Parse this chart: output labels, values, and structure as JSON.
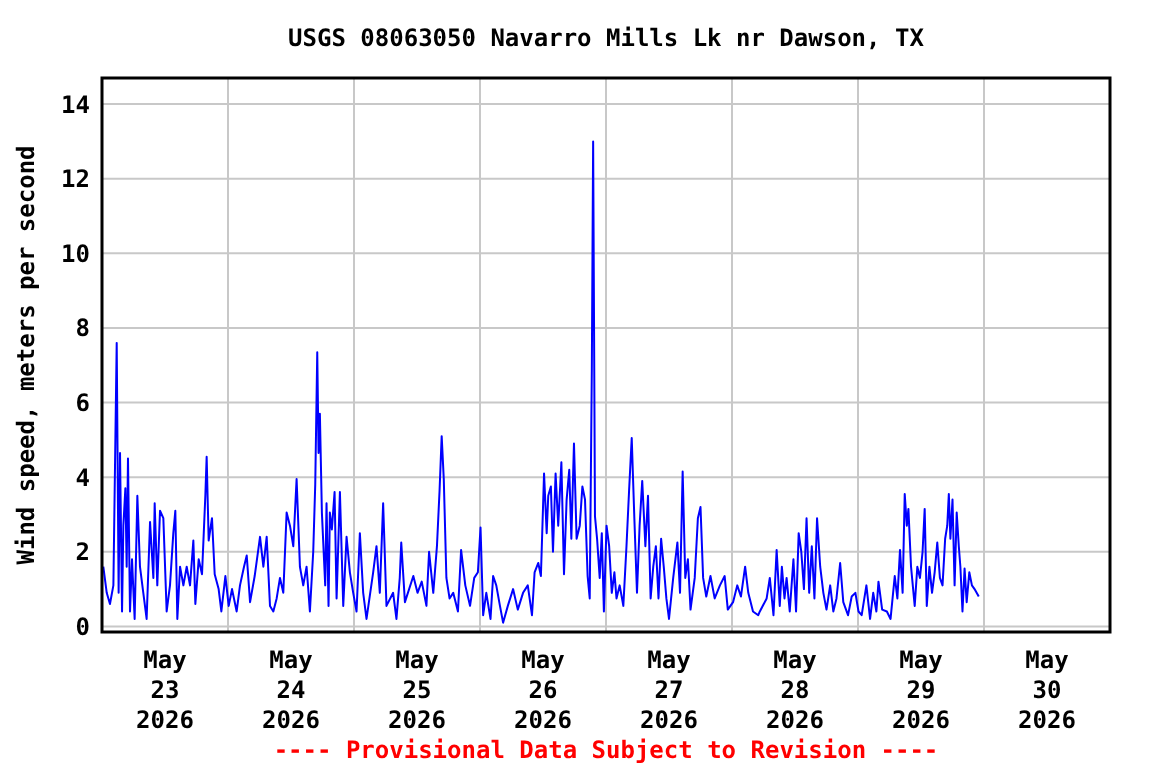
{
  "chart_data": {
    "type": "line",
    "title": "USGS 08063050 Navarro Mills Lk nr Dawson, TX",
    "ylabel": "Wind speed, meters per second",
    "annotations": [
      "---- Provisional Data Subject to Revision ----"
    ],
    "xlim": [
      "2026-05-23T00:00",
      "2026-05-31T00:00"
    ],
    "xticks": [
      {
        "value": "2026-05-23T12:00",
        "label": "May\n23\n2026"
      },
      {
        "value": "2026-05-24T12:00",
        "label": "May\n24\n2026"
      },
      {
        "value": "2026-05-25T12:00",
        "label": "May\n25\n2026"
      },
      {
        "value": "2026-05-26T12:00",
        "label": "May\n26\n2026"
      },
      {
        "value": "2026-05-27T12:00",
        "label": "May\n27\n2026"
      },
      {
        "value": "2026-05-28T12:00",
        "label": "May\n28\n2026"
      },
      {
        "value": "2026-05-29T12:00",
        "label": "May\n29\n2026"
      },
      {
        "value": "2026-05-30T12:00",
        "label": "May\n30\n2026"
      },
      {
        "value": "2026-05-24T00:00",
        "label": null
      },
      {
        "value": "2026-05-25T00:00",
        "label": null
      },
      {
        "value": "2026-05-26T00:00",
        "label": null
      },
      {
        "value": "2026-05-27T00:00",
        "label": null
      },
      {
        "value": "2026-05-28T00:00",
        "label": null
      },
      {
        "value": "2026-05-29T00:00",
        "label": null
      },
      {
        "value": "2026-05-30T00:00",
        "label": null
      }
    ],
    "ylim": [
      -0.15,
      14.7
    ],
    "yticks": [
      0,
      2,
      4,
      6,
      8,
      10,
      12,
      14
    ],
    "grid": true,
    "series": [
      {
        "color": "#0000ff",
        "x": [
          "2026-05-23T00:15",
          "2026-05-23T00:54",
          "2026-05-23T01:31",
          "2026-05-23T02:10",
          "2026-05-23T02:48",
          "2026-05-23T03:10",
          "2026-05-23T03:26",
          "2026-05-23T03:49",
          "2026-05-23T04:04",
          "2026-05-23T04:27",
          "2026-05-23T04:42",
          "2026-05-23T04:57",
          "2026-05-23T05:20",
          "2026-05-23T05:43",
          "2026-05-23T06:13",
          "2026-05-23T06:44",
          "2026-05-23T07:14",
          "2026-05-23T07:52",
          "2026-05-23T08:30",
          "2026-05-23T09:09",
          "2026-05-23T09:47",
          "2026-05-23T10:02",
          "2026-05-23T10:32",
          "2026-05-23T11:03",
          "2026-05-23T11:41",
          "2026-05-23T12:19",
          "2026-05-23T12:57",
          "2026-05-23T13:35",
          "2026-05-23T13:58",
          "2026-05-23T14:21",
          "2026-05-23T14:52",
          "2026-05-23T15:30",
          "2026-05-23T16:08",
          "2026-05-23T16:46",
          "2026-05-23T17:24",
          "2026-05-23T17:47",
          "2026-05-23T18:25",
          "2026-05-23T19:03",
          "2026-05-23T19:41",
          "2026-05-23T19:56",
          "2026-05-23T20:19",
          "2026-05-23T20:57",
          "2026-05-23T21:28",
          "2026-05-23T22:13",
          "2026-05-23T22:44",
          "2026-05-23T23:30",
          "2026-05-24T00:08",
          "2026-05-24T00:46",
          "2026-05-24T01:39",
          "2026-05-24T02:17",
          "2026-05-24T03:03",
          "2026-05-24T03:34",
          "2026-05-24T04:12",
          "2026-05-24T05:05",
          "2026-05-24T06:06",
          "2026-05-24T06:44",
          "2026-05-24T07:22",
          "2026-05-24T08:00",
          "2026-05-24T08:38",
          "2026-05-24T09:16",
          "2026-05-24T09:54",
          "2026-05-24T10:32",
          "2026-05-24T11:10",
          "2026-05-24T11:48",
          "2026-05-24T12:26",
          "2026-05-24T13:04",
          "2026-05-24T13:42",
          "2026-05-24T14:20",
          "2026-05-24T14:58",
          "2026-05-24T15:36",
          "2026-05-24T16:14",
          "2026-05-24T16:37",
          "2026-05-24T17:00",
          "2026-05-24T17:15",
          "2026-05-24T17:30",
          "2026-05-24T17:53",
          "2026-05-24T18:31",
          "2026-05-24T18:46",
          "2026-05-24T19:09",
          "2026-05-24T19:24",
          "2026-05-24T19:47",
          "2026-05-24T20:18",
          "2026-05-24T20:41",
          "2026-05-24T21:19",
          "2026-05-24T21:57",
          "2026-05-24T22:35",
          "2026-05-24T23:13",
          "2026-05-24T23:51",
          "2026-05-25T00:29",
          "2026-05-25T01:07",
          "2026-05-25T01:45",
          "2026-05-25T02:23",
          "2026-05-25T03:39",
          "2026-05-25T04:17",
          "2026-05-25T04:55",
          "2026-05-25T05:33",
          "2026-05-25T06:11",
          "2026-05-25T07:27",
          "2026-05-25T08:05",
          "2026-05-25T08:43",
          "2026-05-25T09:00",
          "2026-05-25T09:42",
          "2026-05-25T11:18",
          "2026-05-25T12:06",
          "2026-05-25T12:54",
          "2026-05-25T13:48",
          "2026-05-25T14:18",
          "2026-05-25T15:06",
          "2026-05-25T15:48",
          "2026-05-25T16:18",
          "2026-05-25T16:42",
          "2026-05-25T17:06",
          "2026-05-25T17:36",
          "2026-05-25T18:12",
          "2026-05-25T18:54",
          "2026-05-25T19:48",
          "2026-05-25T20:24",
          "2026-05-25T21:12",
          "2026-05-25T22:06",
          "2026-05-25T22:54",
          "2026-05-25T23:36",
          "2026-05-26T00:06",
          "2026-05-26T00:36",
          "2026-05-26T01:12",
          "2026-05-26T02:00",
          "2026-05-26T02:30",
          "2026-05-26T03:06",
          "2026-05-26T03:48",
          "2026-05-26T04:24",
          "2026-05-26T05:18",
          "2026-05-26T06:18",
          "2026-05-26T07:12",
          "2026-05-26T08:12",
          "2026-05-26T09:06",
          "2026-05-26T09:54",
          "2026-05-26T10:24",
          "2026-05-26T11:06",
          "2026-05-26T11:36",
          "2026-05-26T12:12",
          "2026-05-26T12:42",
          "2026-05-26T13:00",
          "2026-05-26T13:30",
          "2026-05-26T13:54",
          "2026-05-26T14:24",
          "2026-05-26T14:54",
          "2026-05-26T15:30",
          "2026-05-26T16:00",
          "2026-05-26T16:30",
          "2026-05-26T17:00",
          "2026-05-26T17:24",
          "2026-05-26T17:54",
          "2026-05-26T18:24",
          "2026-05-26T19:00",
          "2026-05-26T19:30",
          "2026-05-26T20:00",
          "2026-05-26T20:30",
          "2026-05-26T20:54",
          "2026-05-26T21:18",
          "2026-05-26T21:33",
          "2026-05-26T21:54",
          "2026-05-26T22:18",
          "2026-05-26T22:48",
          "2026-05-26T23:12",
          "2026-05-26T23:36",
          "2026-05-27T00:06",
          "2026-05-27T00:36",
          "2026-05-27T01:06",
          "2026-05-27T01:36",
          "2026-05-27T02:00",
          "2026-05-27T02:36",
          "2026-05-27T03:18",
          "2026-05-27T03:54",
          "2026-05-27T04:24",
          "2026-05-27T04:54",
          "2026-05-27T05:24",
          "2026-05-27T05:54",
          "2026-05-27T06:24",
          "2026-05-27T06:54",
          "2026-05-27T07:30",
          "2026-05-27T08:00",
          "2026-05-27T08:30",
          "2026-05-27T09:00",
          "2026-05-27T09:30",
          "2026-05-27T10:00",
          "2026-05-27T10:30",
          "2026-05-27T11:00",
          "2026-05-27T11:30",
          "2026-05-27T12:00",
          "2026-05-27T12:48",
          "2026-05-27T13:36",
          "2026-05-27T14:06",
          "2026-05-27T14:36",
          "2026-05-27T15:06",
          "2026-05-27T15:36",
          "2026-05-27T16:06",
          "2026-05-27T16:54",
          "2026-05-27T17:30",
          "2026-05-27T18:00",
          "2026-05-27T18:30",
          "2026-05-27T19:06",
          "2026-05-27T19:54",
          "2026-05-27T20:42",
          "2026-05-27T21:42",
          "2026-05-27T22:36",
          "2026-05-27T23:12",
          "2026-05-28T00:12",
          "2026-05-28T01:00",
          "2026-05-28T01:42",
          "2026-05-28T02:30",
          "2026-05-28T03:06",
          "2026-05-28T04:00",
          "2026-05-28T05:00",
          "2026-05-28T05:18",
          "2026-05-28T06:36",
          "2026-05-28T07:12",
          "2026-05-28T07:54",
          "2026-05-28T08:30",
          "2026-05-28T09:06",
          "2026-05-28T09:30",
          "2026-05-28T10:00",
          "2026-05-28T10:24",
          "2026-05-28T11:00",
          "2026-05-28T11:42",
          "2026-05-28T12:12",
          "2026-05-28T12:42",
          "2026-05-28T13:12",
          "2026-05-28T13:42",
          "2026-05-28T14:12",
          "2026-05-28T14:42",
          "2026-05-28T15:12",
          "2026-05-28T15:42",
          "2026-05-28T16:12",
          "2026-05-28T16:48",
          "2026-05-28T17:24",
          "2026-05-28T18:00",
          "2026-05-28T18:42",
          "2026-05-28T19:18",
          "2026-05-28T19:54",
          "2026-05-28T20:36",
          "2026-05-28T21:12",
          "2026-05-28T22:06",
          "2026-05-28T22:48",
          "2026-05-28T23:30",
          "2026-05-29T00:06",
          "2026-05-29T00:42",
          "2026-05-29T01:36",
          "2026-05-29T02:18",
          "2026-05-29T02:54",
          "2026-05-29T03:30",
          "2026-05-29T03:54",
          "2026-05-29T04:36",
          "2026-05-29T05:30",
          "2026-05-29T06:12",
          "2026-05-29T07:00",
          "2026-05-29T07:30",
          "2026-05-29T08:00",
          "2026-05-29T08:30",
          "2026-05-29T08:54",
          "2026-05-29T09:18",
          "2026-05-29T09:36",
          "2026-05-29T10:06",
          "2026-05-29T10:48",
          "2026-05-29T11:18",
          "2026-05-29T11:48",
          "2026-05-29T12:18",
          "2026-05-29T12:42",
          "2026-05-29T13:06",
          "2026-05-29T13:36",
          "2026-05-29T14:06",
          "2026-05-29T14:36",
          "2026-05-29T15:06",
          "2026-05-29T15:36",
          "2026-05-29T16:06",
          "2026-05-29T16:36",
          "2026-05-29T17:00",
          "2026-05-29T17:18",
          "2026-05-29T17:36",
          "2026-05-29T18:00",
          "2026-05-29T18:24",
          "2026-05-29T18:48",
          "2026-05-29T19:12",
          "2026-05-29T19:30",
          "2026-05-29T19:54",
          "2026-05-29T20:18",
          "2026-05-29T20:42",
          "2026-05-29T21:12",
          "2026-05-29T21:42",
          "2026-05-29T22:12",
          "2026-05-29T23:00"
        ],
        "values": [
          1.6,
          0.9,
          0.6,
          1.1,
          7.6,
          0.9,
          4.65,
          0.4,
          2.7,
          3.7,
          1.6,
          4.5,
          0.4,
          1.8,
          0.2,
          3.5,
          1.6,
          0.9,
          0.2,
          2.8,
          1.3,
          3.3,
          1.1,
          3.1,
          2.9,
          0.4,
          1.1,
          2.5,
          3.1,
          0.2,
          1.6,
          1.1,
          1.6,
          1.1,
          2.3,
          0.6,
          1.8,
          1.4,
          3.5,
          4.55,
          2.3,
          2.9,
          1.4,
          1.0,
          0.4,
          1.35,
          0.55,
          1.0,
          0.4,
          1.1,
          1.6,
          1.9,
          0.65,
          1.35,
          2.4,
          1.6,
          2.4,
          0.55,
          0.4,
          0.75,
          1.3,
          0.9,
          3.05,
          2.7,
          2.15,
          3.95,
          1.6,
          1.1,
          1.6,
          0.4,
          2.0,
          3.8,
          7.35,
          4.65,
          5.7,
          3.05,
          1.1,
          3.3,
          0.55,
          3.05,
          2.6,
          3.6,
          0.75,
          3.6,
          0.55,
          2.4,
          1.45,
          0.9,
          0.4,
          2.5,
          0.9,
          0.2,
          1.45,
          2.15,
          0.9,
          3.3,
          0.55,
          0.9,
          0.2,
          1.3,
          2.25,
          0.65,
          1.35,
          0.9,
          1.2,
          0.55,
          2.0,
          0.9,
          2.15,
          3.65,
          5.1,
          3.95,
          1.3,
          0.75,
          0.9,
          0.4,
          2.05,
          1.1,
          0.55,
          1.3,
          1.45,
          2.65,
          0.3,
          0.9,
          0.2,
          1.35,
          1.1,
          0.55,
          0.1,
          0.55,
          1.0,
          0.45,
          0.9,
          1.1,
          0.3,
          1.45,
          1.7,
          1.35,
          4.1,
          2.5,
          3.5,
          3.75,
          2.0,
          4.1,
          2.7,
          4.4,
          1.4,
          3.4,
          4.2,
          2.35,
          4.9,
          2.35,
          2.7,
          3.75,
          3.4,
          1.35,
          0.75,
          6.9,
          13.0,
          2.95,
          2.35,
          1.3,
          2.5,
          0.4,
          2.7,
          2.15,
          0.9,
          1.45,
          0.75,
          1.1,
          0.55,
          2.15,
          3.65,
          5.05,
          2.9,
          0.9,
          2.7,
          3.9,
          2.15,
          3.5,
          0.75,
          1.6,
          2.15,
          0.75,
          2.35,
          1.6,
          0.75,
          0.2,
          1.3,
          2.25,
          0.9,
          4.15,
          1.3,
          1.8,
          0.45,
          1.3,
          2.9,
          3.2,
          1.3,
          0.8,
          1.35,
          0.75,
          1.1,
          1.35,
          0.45,
          0.65,
          1.1,
          0.8,
          1.6,
          0.9,
          0.4,
          0.3,
          0.4,
          0.75,
          1.3,
          0.3,
          2.05,
          0.55,
          1.6,
          0.75,
          1.3,
          0.4,
          1.8,
          0.4,
          2.5,
          2.0,
          1.0,
          2.9,
          0.9,
          2.15,
          0.75,
          2.9,
          1.6,
          0.9,
          0.45,
          1.1,
          0.4,
          0.75,
          1.7,
          0.65,
          0.3,
          0.8,
          0.9,
          0.4,
          0.3,
          1.1,
          0.2,
          0.9,
          0.4,
          1.2,
          0.45,
          0.4,
          0.2,
          1.35,
          0.75,
          2.05,
          0.9,
          3.55,
          2.7,
          3.15,
          1.6,
          0.55,
          1.6,
          1.3,
          2.0,
          3.15,
          0.55,
          1.6,
          0.9,
          1.45,
          2.25,
          1.3,
          1.1,
          2.35,
          2.7,
          3.55,
          2.35,
          3.4,
          1.1,
          3.05,
          2.15,
          1.6,
          0.4,
          1.55,
          0.65,
          1.45,
          1.1,
          1.0,
          0.8
        ]
      }
    ]
  }
}
